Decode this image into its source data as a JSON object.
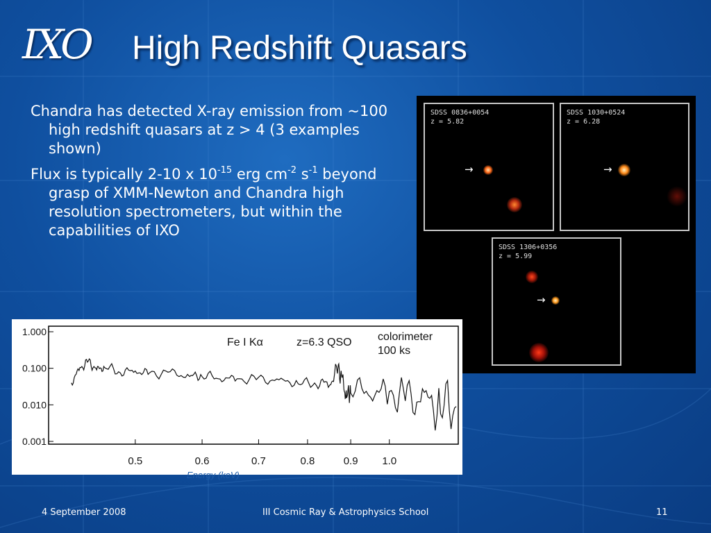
{
  "slide": {
    "logo": "IXO",
    "title": "High Redshift Quasars",
    "bullets": [
      {
        "text": "Chandra has detected X-ray emission from ~100  high redshift quasars at z > 4 (3 examples shown)"
      },
      {
        "pre": "Flux is typically 2-10 x 10",
        "sup1": "-15",
        "mid": " erg cm",
        "sup2": "-2",
        "mid2": " s",
        "sup3": "-1",
        "post": " beyond grasp of XMM-Newton and Chandra high resolution spectrometers, but within the capabilities of IXO"
      }
    ],
    "images": [
      {
        "name": "SDSS 0836+0054",
        "z": "z = 5.82"
      },
      {
        "name": "SDSS 1030+0524",
        "z": "z = 6.28"
      },
      {
        "name": "SDSS 1306+0356",
        "z": "z = 5.99"
      }
    ],
    "spectrum": {
      "line_label": "Fe I Kα",
      "qso_label": "z=6.3 QSO",
      "instrument_label": "colorimeter",
      "exposure_label": "100 ks",
      "x_ticks": [
        "0.5",
        "0.6",
        "0.7",
        "0.8",
        "0.9",
        "1.0"
      ],
      "y_ticks": [
        "1.000",
        "0.100",
        "0.010",
        "0.001"
      ],
      "x_label": "Energy (keV)"
    },
    "footer": {
      "date": "4 September 2008",
      "event": "III Cosmic Ray & Astrophysics School",
      "page": "11"
    }
  },
  "colors": {
    "background": "#0f4f9f",
    "title_shadow": "#062a5c",
    "xlabel": "#1d5aa6"
  },
  "chart_data": {
    "type": "line",
    "x_scale": "log",
    "y_scale": "log",
    "title": "",
    "xlabel": "Energy (keV)",
    "ylabel": "",
    "xlim": [
      0.4,
      1.2
    ],
    "ylim": [
      0.001,
      1.0
    ],
    "grid": false,
    "annotations": [
      "Fe I Kα",
      "z=6.3 QSO",
      "colorimeter",
      "100 ks"
    ],
    "series": [
      {
        "x": [
          0.42,
          0.43,
          0.44,
          0.45,
          0.46,
          0.48,
          0.5,
          0.52,
          0.55,
          0.58,
          0.6,
          0.63,
          0.66,
          0.7,
          0.74,
          0.78,
          0.82,
          0.85,
          0.87,
          0.88,
          0.89,
          0.9,
          0.95,
          1.0,
          1.05,
          1.1,
          1.15,
          1.2
        ],
        "y": [
          0.04,
          0.1,
          0.15,
          0.09,
          0.11,
          0.08,
          0.085,
          0.07,
          0.075,
          0.06,
          0.065,
          0.055,
          0.05,
          0.05,
          0.045,
          0.04,
          0.04,
          0.038,
          0.1,
          0.045,
          0.015,
          0.03,
          0.025,
          0.02,
          0.015,
          0.012,
          0.01,
          0.009
        ]
      }
    ]
  }
}
